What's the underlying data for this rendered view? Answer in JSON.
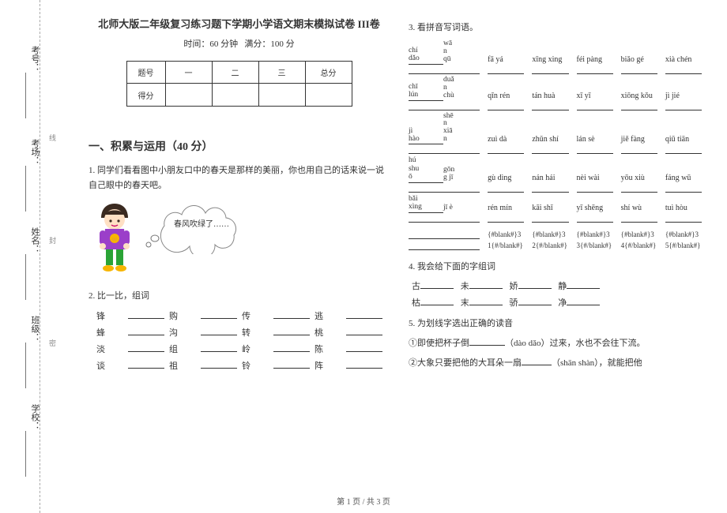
{
  "margin": {
    "labels": [
      "考号：",
      "考场：",
      "姓名：",
      "班级：",
      "学校："
    ],
    "lineLabels": [
      "线",
      "封",
      "密"
    ]
  },
  "header": {
    "title": "北师大版二年级复习练习题下学期小学语文期末模拟试卷 III卷",
    "sub_time": "时间：60 分钟",
    "sub_full": "满分：100 分"
  },
  "scoreTable": {
    "h0": "题号",
    "h1": "一",
    "h2": "二",
    "h3": "三",
    "h4": "总分",
    "r0": "得分"
  },
  "sectionA": "一、积累与运用（40 分）",
  "q1": "1. 同学们看看图中小朋友口中的春天是那样的美丽，你也用自己的话来说一说自己眼中的春天吧。",
  "bubble": "春风吹绿了……",
  "q2": "2. 比一比，组词",
  "q2rows": [
    [
      "锋",
      "购",
      "传",
      "逃"
    ],
    [
      "蜂",
      "沟",
      "转",
      "桃"
    ],
    [
      "淡",
      "组",
      "岭",
      "陈"
    ],
    [
      "谈",
      "祖",
      "铃",
      "阵"
    ]
  ],
  "q3": "3. 看拼音写词语。",
  "pinyin": {
    "left": [
      [
        "chí",
        "dǎo"
      ],
      [
        "chī",
        "lún"
      ],
      [
        "jì",
        "hào"
      ],
      [
        "hú",
        "shu",
        "ō"
      ],
      [
        "bǎi",
        "xìng"
      ]
    ],
    "left2": [
      [
        "wā",
        "n",
        "qū"
      ],
      [
        "duǎ",
        "n",
        "chù"
      ],
      [
        "shē",
        "n",
        "xiā",
        "n"
      ],
      [
        "gōn",
        "g jī"
      ],
      [
        "jī è"
      ]
    ],
    "cols": [
      [
        "fā yá",
        "qīn rén",
        "zuì dà",
        "gù dìng",
        "rén mín"
      ],
      [
        "xīng xing",
        "tán huà",
        "zhǔn shí",
        "nán hái",
        "kāi shǐ"
      ],
      [
        "féi pàng",
        "xī yī",
        "lán sè",
        "nèi wài",
        "yī shēng"
      ],
      [
        "biǎo gé",
        "xiōng kǒu",
        "jiě fàng",
        "yōu xiù",
        "shí wù"
      ],
      [
        "xià chén",
        "jì jié",
        "qiū tiān",
        "fáng wū",
        "tuì hòu"
      ]
    ]
  },
  "blanktpl": {
    "c": [
      "{#blank#}3",
      "{#blank#}3",
      "{#blank#}3",
      "{#blank#}3",
      "{#blank#}3"
    ],
    "d": [
      "1{#/blank#}",
      "2{#/blank#}",
      "3{#/blank#}",
      "4{#/blank#}",
      "5{#/blank#}"
    ]
  },
  "q4": "4. 我会给下面的字组词",
  "q4rows": [
    [
      "古",
      "未",
      "娇",
      "静"
    ],
    [
      "枯",
      "末",
      "骄",
      "净"
    ]
  ],
  "q5": "5. 为划线字选出正确的读音",
  "q5a_pre": "①即使把杯子倒",
  "q5a_mid": "（dào  dǎo）过来，水也不会往下流。",
  "q5b_pre": "②大象只要把他的大耳朵一扇",
  "q5b_mid": "（shān  shàn），就能把他",
  "footer": "第 1 页  /  共 3 页"
}
